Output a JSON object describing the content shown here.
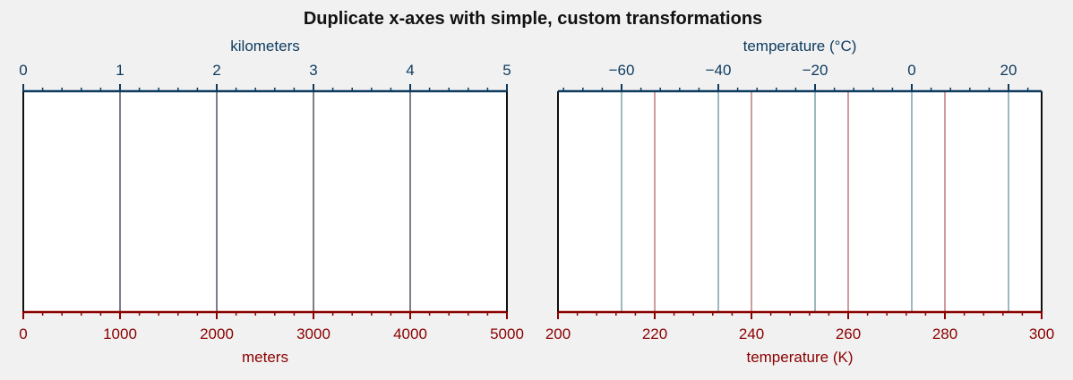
{
  "title": "Duplicate x-axes with simple, custom transformations",
  "colors": {
    "background": "#f1f1f1",
    "top_axis": "#0d3b5f",
    "bottom_axis": "#8b0000",
    "frame": "#111111",
    "gray_line": "#7d7d88",
    "blue_line": "#9cb9c0",
    "red_line": "#d09a9e"
  },
  "chart_data": [
    {
      "type": "line",
      "xlabel_bottom": "meters",
      "xlabel_top": "kilometers",
      "x_bottom_range": [
        0,
        5000
      ],
      "x_top_range": [
        0,
        5
      ],
      "bottom_ticks": [
        0,
        1000,
        2000,
        3000,
        4000,
        5000
      ],
      "top_ticks": [
        0,
        1,
        2,
        3,
        4,
        5
      ],
      "bottom_minor_step": 200,
      "top_minor_step": 0.2,
      "transform": "kilometers = meters / 1000",
      "vlines": [
        {
          "x": 1000,
          "color": "#7d7d88"
        },
        {
          "x": 2000,
          "color": "#7d7d88"
        },
        {
          "x": 3000,
          "color": "#7d7d88"
        },
        {
          "x": 4000,
          "color": "#7d7d88"
        }
      ],
      "grid": false
    },
    {
      "type": "line",
      "xlabel_bottom": "temperature (K)",
      "xlabel_top": "temperature (°C)",
      "x_bottom_range": [
        200,
        300
      ],
      "x_top_range": [
        -73.15,
        26.85
      ],
      "bottom_ticks": [
        200,
        220,
        240,
        260,
        280,
        300
      ],
      "top_ticks": [
        -60,
        -40,
        -20,
        0,
        20
      ],
      "bottom_minor_step": 4,
      "top_minor_step": 4,
      "transform": "celsius = kelvin - 273.15",
      "vlines": [
        {
          "x": 213.15,
          "color": "#9cb9c0"
        },
        {
          "x": 233.15,
          "color": "#9cb9c0"
        },
        {
          "x": 253.15,
          "color": "#9cb9c0"
        },
        {
          "x": 273.15,
          "color": "#9cb9c0"
        },
        {
          "x": 293.15,
          "color": "#9cb9c0"
        },
        {
          "x": 220,
          "color": "#d09a9e"
        },
        {
          "x": 240,
          "color": "#d09a9e"
        },
        {
          "x": 260,
          "color": "#d09a9e"
        },
        {
          "x": 280,
          "color": "#d09a9e"
        }
      ],
      "grid": false
    }
  ]
}
